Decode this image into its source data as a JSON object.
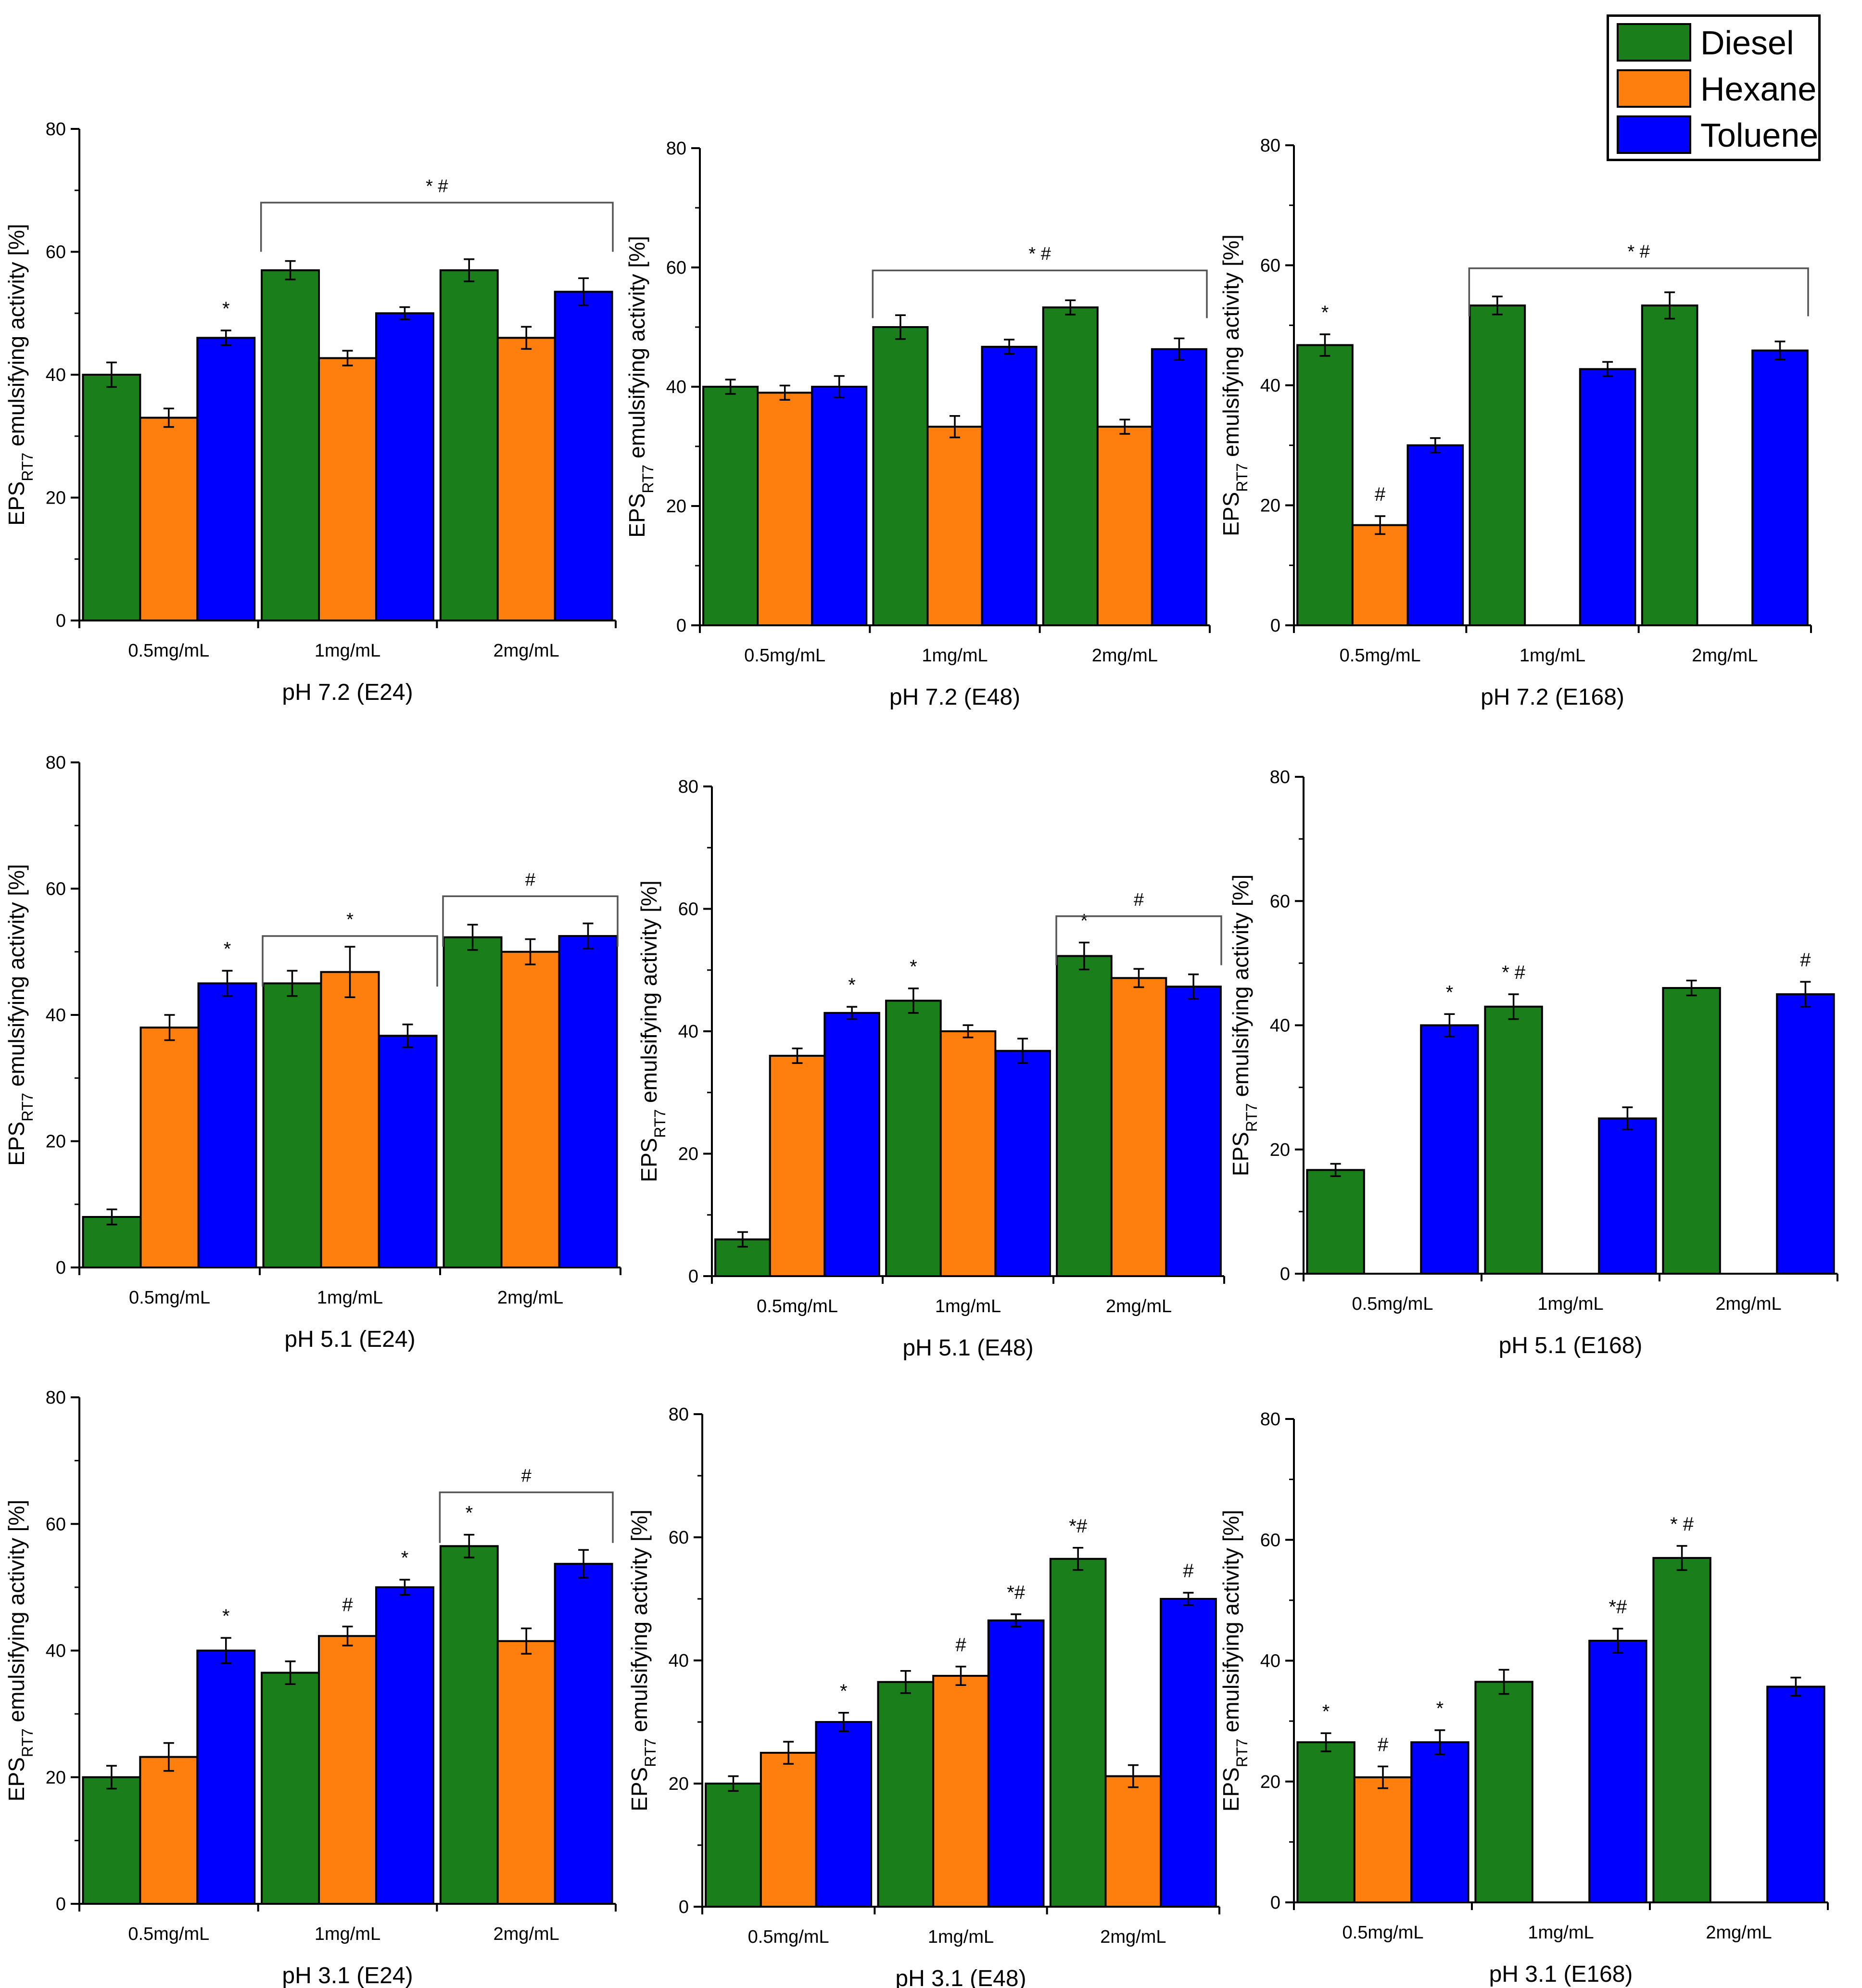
{
  "legend": {
    "items": [
      {
        "name": "Diesel",
        "color": "#1a7f1a"
      },
      {
        "name": "Hexane",
        "color": "#ff7f0e"
      },
      {
        "name": "Toluene",
        "color": "#0000ff"
      }
    ]
  },
  "chart_data": [
    {
      "type": "bar",
      "title": "",
      "xlabel": "pH 7.2 (E24)",
      "ylabel_main": "EPS",
      "ylabel_sub": "RT7",
      "ylabel_rest": " emulsifying activity [%]",
      "categories": [
        "0.5mg/mL",
        "1mg/mL",
        "2mg/mL"
      ],
      "ylim": [
        0,
        80
      ],
      "yticks": [
        0,
        20,
        40,
        60,
        80
      ],
      "series": [
        {
          "name": "Diesel",
          "values": [
            40,
            57,
            57
          ],
          "errors": [
            2,
            1.5,
            1.8
          ],
          "marks": [
            "",
            "",
            ""
          ]
        },
        {
          "name": "Hexane",
          "values": [
            33,
            42.7,
            46
          ],
          "errors": [
            1.5,
            1.2,
            1.8
          ],
          "marks": [
            "",
            "",
            ""
          ]
        },
        {
          "name": "Toluene",
          "values": [
            46,
            50,
            53.5
          ],
          "errors": [
            1.2,
            1,
            2.2
          ],
          "marks": [
            "*",
            "",
            ""
          ]
        }
      ],
      "brackets": [
        {
          "from": 1,
          "to": 2,
          "level": 68,
          "label": "* #"
        }
      ]
    },
    {
      "type": "bar",
      "title": "",
      "xlabel": "pH 7.2 (E48)",
      "ylabel_main": "EPS",
      "ylabel_sub": "RT7",
      "ylabel_rest": " emulsifying activity [%]",
      "categories": [
        "0.5mg/mL",
        "1mg/mL",
        "2mg/mL"
      ],
      "ylim": [
        0,
        80
      ],
      "yticks": [
        0,
        20,
        40,
        60,
        80
      ],
      "series": [
        {
          "name": "Diesel",
          "values": [
            40,
            50,
            53.3
          ],
          "errors": [
            1.2,
            2,
            1.2
          ],
          "marks": [
            "",
            "",
            ""
          ]
        },
        {
          "name": "Hexane",
          "values": [
            39,
            33.3,
            33.3
          ],
          "errors": [
            1.2,
            1.8,
            1.2
          ],
          "marks": [
            "",
            "",
            ""
          ]
        },
        {
          "name": "Toluene",
          "values": [
            40,
            46.7,
            46.3
          ],
          "errors": [
            1.8,
            1.2,
            1.8
          ],
          "marks": [
            "",
            "",
            ""
          ]
        }
      ],
      "brackets": [
        {
          "from": 1,
          "to": 2,
          "level": 59.5,
          "label": "* #"
        }
      ]
    },
    {
      "type": "bar",
      "title": "",
      "xlabel": "pH 7.2 (E168)",
      "ylabel_main": "EPS",
      "ylabel_sub": "RT7",
      "ylabel_rest": " emulsifying activity [%]",
      "categories": [
        "0.5mg/mL",
        "1mg/mL",
        "2mg/mL"
      ],
      "ylim": [
        0,
        80
      ],
      "yticks": [
        0,
        20,
        40,
        60,
        80
      ],
      "series": [
        {
          "name": "Diesel",
          "values": [
            46.7,
            53.3,
            53.3
          ],
          "errors": [
            1.8,
            1.5,
            2.2
          ],
          "marks": [
            "*",
            "",
            ""
          ]
        },
        {
          "name": "Hexane",
          "values": [
            16.7,
            0,
            0
          ],
          "errors": [
            1.5,
            0,
            0
          ],
          "marks": [
            "#",
            "",
            ""
          ]
        },
        {
          "name": "Toluene",
          "values": [
            30,
            42.7,
            45.8
          ],
          "errors": [
            1.2,
            1.2,
            1.5
          ],
          "marks": [
            "",
            "",
            ""
          ]
        }
      ],
      "brackets": [
        {
          "from": 1,
          "to": 2,
          "level": 59.5,
          "label": "* #"
        }
      ]
    },
    {
      "type": "bar",
      "title": "",
      "xlabel": "pH 5.1 (E24)",
      "ylabel_main": "EPS",
      "ylabel_sub": "RT7",
      "ylabel_rest": " emulsifying activity [%]",
      "categories": [
        "0.5mg/mL",
        "1mg/mL",
        "2mg/mL"
      ],
      "ylim": [
        0,
        80
      ],
      "yticks": [
        0,
        20,
        40,
        60,
        80
      ],
      "series": [
        {
          "name": "Diesel",
          "values": [
            8,
            45,
            52.3
          ],
          "errors": [
            1.2,
            2,
            2
          ],
          "marks": [
            "",
            "",
            ""
          ]
        },
        {
          "name": "Hexane",
          "values": [
            38,
            46.8,
            50
          ],
          "errors": [
            2,
            4,
            2
          ],
          "marks": [
            "",
            "",
            ""
          ]
        },
        {
          "name": "Toluene",
          "values": [
            45,
            36.7,
            52.5
          ],
          "errors": [
            2,
            1.8,
            2
          ],
          "marks": [
            "*",
            "",
            ""
          ]
        }
      ],
      "brackets": [
        {
          "from": 1,
          "to": 1,
          "level": 52.5,
          "label": "*"
        },
        {
          "from": 2,
          "to": 2,
          "level": 58.8,
          "label": "#"
        }
      ]
    },
    {
      "type": "bar",
      "title": "",
      "xlabel": "pH 5.1 (E48)",
      "ylabel_main": "EPS",
      "ylabel_sub": "RT7",
      "ylabel_rest": " emulsifying activity [%]",
      "categories": [
        "0.5mg/mL",
        "1mg/mL",
        "2mg/mL"
      ],
      "ylim": [
        0,
        80
      ],
      "yticks": [
        0,
        20,
        40,
        60,
        80
      ],
      "series": [
        {
          "name": "Diesel",
          "values": [
            6,
            45,
            52.3
          ],
          "errors": [
            1.2,
            2,
            2.2
          ],
          "marks": [
            "",
            "*",
            "*"
          ]
        },
        {
          "name": "Hexane",
          "values": [
            36,
            40,
            48.7
          ],
          "errors": [
            1.2,
            1,
            1.5
          ],
          "marks": [
            "",
            "",
            ""
          ]
        },
        {
          "name": "Toluene",
          "values": [
            43,
            36.8,
            47.3
          ],
          "errors": [
            1,
            2,
            2
          ],
          "marks": [
            "*",
            "",
            ""
          ]
        }
      ],
      "brackets": [
        {
          "from": 2,
          "to": 2,
          "level": 58.8,
          "label": "#"
        }
      ]
    },
    {
      "type": "bar",
      "title": "",
      "xlabel": "pH 5.1 (E168)",
      "ylabel_main": "EPS",
      "ylabel_sub": "RT7",
      "ylabel_rest": " emulsifying activity [%]",
      "categories": [
        "0.5mg/mL",
        "1mg/mL",
        "2mg/mL"
      ],
      "ylim": [
        0,
        80
      ],
      "yticks": [
        0,
        20,
        40,
        60,
        80
      ],
      "series": [
        {
          "name": "Diesel",
          "values": [
            16.7,
            43,
            46
          ],
          "errors": [
            1,
            2,
            1.2
          ],
          "marks": [
            "",
            "* #",
            ""
          ]
        },
        {
          "name": "Hexane",
          "values": [
            0,
            0,
            0
          ],
          "errors": [
            0,
            0,
            0
          ],
          "marks": [
            "",
            "",
            ""
          ]
        },
        {
          "name": "Toluene",
          "values": [
            40,
            25,
            45
          ],
          "errors": [
            1.8,
            1.8,
            2
          ],
          "marks": [
            "*",
            "",
            "#"
          ]
        }
      ],
      "brackets": []
    },
    {
      "type": "bar",
      "title": "",
      "xlabel": "pH 3.1 (E24)",
      "ylabel_main": "EPS",
      "ylabel_sub": "RT7",
      "ylabel_rest": " emulsifying activity [%]",
      "categories": [
        "0.5mg/mL",
        "1mg/mL",
        "2mg/mL"
      ],
      "ylim": [
        0,
        80
      ],
      "yticks": [
        0,
        20,
        40,
        60,
        80
      ],
      "series": [
        {
          "name": "Diesel",
          "values": [
            20,
            36.5,
            56.5
          ],
          "errors": [
            1.8,
            1.8,
            1.8
          ],
          "marks": [
            "",
            "",
            "*"
          ]
        },
        {
          "name": "Hexane",
          "values": [
            23.2,
            42.3,
            41.5
          ],
          "errors": [
            2.2,
            1.5,
            2
          ],
          "marks": [
            "",
            "#",
            ""
          ]
        },
        {
          "name": "Toluene",
          "values": [
            40,
            50,
            53.7
          ],
          "errors": [
            2,
            1.2,
            2.2
          ],
          "marks": [
            "*",
            "*",
            ""
          ]
        }
      ],
      "brackets": [
        {
          "from": 2,
          "to": 2,
          "level": 65,
          "label": "#"
        }
      ]
    },
    {
      "type": "bar",
      "title": "",
      "xlabel": "pH 3.1 (E48)",
      "ylabel_main": "EPS",
      "ylabel_sub": "RT7",
      "ylabel_rest": " emulsifying activity [%]",
      "categories": [
        "0.5mg/mL",
        "1mg/mL",
        "2mg/mL"
      ],
      "ylim": [
        0,
        80
      ],
      "yticks": [
        0,
        20,
        40,
        60,
        80
      ],
      "series": [
        {
          "name": "Diesel",
          "values": [
            20,
            36.5,
            56.5
          ],
          "errors": [
            1.2,
            1.8,
            1.8
          ],
          "marks": [
            "",
            "",
            "*#"
          ]
        },
        {
          "name": "Hexane",
          "values": [
            25,
            37.5,
            21.2
          ],
          "errors": [
            1.8,
            1.5,
            1.8
          ],
          "marks": [
            "",
            "#",
            ""
          ]
        },
        {
          "name": "Toluene",
          "values": [
            30,
            46.5,
            50
          ],
          "errors": [
            1.5,
            1,
            1
          ],
          "marks": [
            "*",
            "*#",
            "#"
          ]
        }
      ],
      "brackets": []
    },
    {
      "type": "bar",
      "title": "",
      "xlabel": "pH 3.1 (E168)",
      "ylabel_main": "EPS",
      "ylabel_sub": "RT7",
      "ylabel_rest": " emulsifying activity [%]",
      "categories": [
        "0.5mg/mL",
        "1mg/mL",
        "2mg/mL"
      ],
      "ylim": [
        0,
        80
      ],
      "yticks": [
        0,
        20,
        40,
        60,
        80
      ],
      "series": [
        {
          "name": "Diesel",
          "values": [
            26.5,
            36.5,
            57
          ],
          "errors": [
            1.5,
            2,
            2
          ],
          "marks": [
            "*",
            "",
            "* #"
          ]
        },
        {
          "name": "Hexane",
          "values": [
            20.7,
            0,
            0
          ],
          "errors": [
            1.8,
            0,
            0
          ],
          "marks": [
            "#",
            "",
            ""
          ]
        },
        {
          "name": "Toluene",
          "values": [
            26.5,
            43.3,
            35.7
          ],
          "errors": [
            2,
            2,
            1.5
          ],
          "marks": [
            "*",
            "*#",
            ""
          ]
        }
      ],
      "brackets": []
    }
  ]
}
